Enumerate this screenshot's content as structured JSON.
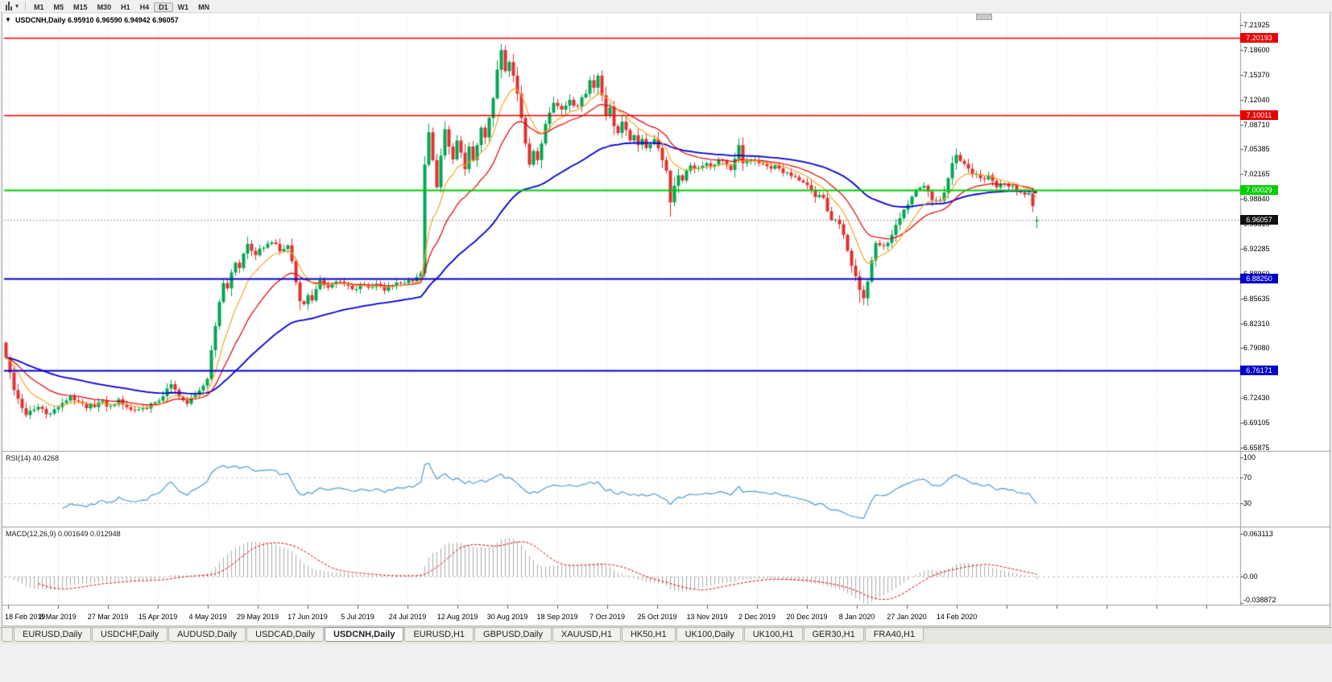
{
  "toolbar": {
    "timeframes": [
      "M1",
      "M5",
      "M15",
      "M30",
      "H1",
      "H4",
      "D1",
      "W1",
      "MN"
    ],
    "active": "D1"
  },
  "chart": {
    "symbol": "USDCNH",
    "period": "Daily",
    "title_overlay": "USDCNH,Daily 6.95910 6.96590 6.94942 6.96057",
    "ohlc": {
      "open": "6.95910",
      "high": "6.96590",
      "low": "6.94942",
      "close": "6.96057"
    }
  },
  "price_axis": {
    "ticks": [
      "7.21925",
      "7.18600",
      "7.15370",
      "7.12040",
      "7.08710",
      "7.05385",
      "7.02165",
      "6.98840",
      "6.95515",
      "6.92285",
      "6.88960",
      "6.85635",
      "6.82310",
      "6.79080",
      "6.75755",
      "6.72430",
      "6.69105",
      "6.65875"
    ]
  },
  "price_lines": [
    {
      "label": "7.20193",
      "value": 7.20193,
      "color": "#E60000"
    },
    {
      "label": "7.10011",
      "value": 7.10011,
      "color": "#E60000"
    },
    {
      "label": "7.00029",
      "value": 7.00029,
      "color": "#00CC00"
    },
    {
      "label": "6.88250",
      "value": 6.8825,
      "color": "#0000C8"
    },
    {
      "label": "6.76171",
      "value": 6.76171,
      "color": "#0000C8"
    }
  ],
  "current_price": {
    "label": "6.96057",
    "value": 6.96057,
    "box_color": "#111111"
  },
  "rsi": {
    "label": "RSI(14) 40.4268",
    "value": "40.4268",
    "ticks": [
      "100",
      "70",
      "30"
    ],
    "tick_values": [
      100,
      70,
      30
    ],
    "level_lines": [
      70,
      30
    ]
  },
  "macd": {
    "label": "MACD(12,26,9) 0.001649 0.012948",
    "values": "0.001649 0.012948",
    "ticks": [
      "0.063113",
      "0.00",
      "-0.038872"
    ],
    "tick_values": [
      0.063113,
      0,
      -0.038872
    ]
  },
  "time_axis": {
    "labels": [
      "18 Feb 2019",
      "8 Mar 2019",
      "27 Mar 2019",
      "15 Apr 2019",
      "4 May 2019",
      "29 May 2019",
      "17 Jun 2019",
      "5 Jul 2019",
      "24 Jul 2019",
      "12 Aug 2019",
      "30 Aug 2019",
      "18 Sep 2019",
      "7 Oct 2019",
      "25 Oct 2019",
      "13 Nov 2019",
      "2 Dec 2019",
      "20 Dec 2019",
      "8 Jan 2020",
      "27 Jan 2020",
      "14 Feb 2020"
    ]
  },
  "tabs": [
    {
      "label": "EURUSD,Daily"
    },
    {
      "label": "USDCHF,Daily"
    },
    {
      "label": "AUDUSD,Daily"
    },
    {
      "label": "USDCAD,Daily"
    },
    {
      "label": "USDCNH,Daily",
      "active": true
    },
    {
      "label": "EURUSD,H1"
    },
    {
      "label": "GBPUSD,Daily"
    },
    {
      "label": "XAUUSD,H1"
    },
    {
      "label": "HK50,H1"
    },
    {
      "label": "UK100,Daily"
    },
    {
      "label": "UK100,H1"
    },
    {
      "label": "GER30,H1"
    },
    {
      "label": "FRA40,H1"
    }
  ],
  "colors": {
    "bull": "#00A651",
    "bear": "#E33030",
    "ma_fast": "#F5A623",
    "ma_mid": "#E00000",
    "ma_slow": "#0000D2",
    "rsi_line": "#4A9CD4",
    "macd_hist": "#ABABAB",
    "macd_signal": "#E00000",
    "grid": "#E3E3E3",
    "level_dash": "#C8C8C8",
    "current_line": "#9C9C9C",
    "panel_border": "#9C9C9C",
    "window_bg": "#FFFFFF",
    "app_bg": "#F0F0F0"
  },
  "chart_data": {
    "type": "candlestick",
    "symbol": "USDCNH",
    "timeframe": "Daily",
    "bar_count": 257,
    "first_open": 6.798,
    "last_bar": {
      "open": 6.9591,
      "high": 6.9659,
      "low": 6.94942,
      "close": 6.96057
    },
    "y_range": [
      6.654,
      7.234
    ],
    "moving_averages": [
      {
        "name": "ma-slow",
        "period": 55,
        "color": "#0000D2",
        "width": 1.8
      },
      {
        "name": "ma-mid",
        "period": 20,
        "color": "#E00000",
        "width": 1.2
      },
      {
        "name": "ma-fast",
        "period": 9,
        "color": "#F5A623",
        "width": 1.2
      }
    ],
    "long_lower_wick_bars": [
      165,
      212,
      213
    ],
    "long_upper_wick_bars": [
      123
    ],
    "close_anchors": [
      [
        0,
        6.778
      ],
      [
        2,
        6.735
      ],
      [
        5,
        6.702
      ],
      [
        8,
        6.713
      ],
      [
        11,
        6.704
      ],
      [
        14,
        6.718
      ],
      [
        16,
        6.727
      ],
      [
        18,
        6.72
      ],
      [
        20,
        6.711
      ],
      [
        23,
        6.719
      ],
      [
        26,
        6.714
      ],
      [
        28,
        6.723
      ],
      [
        31,
        6.709
      ],
      [
        34,
        6.711
      ],
      [
        37,
        6.719
      ],
      [
        39,
        6.727
      ],
      [
        41,
        6.743
      ],
      [
        43,
        6.726
      ],
      [
        45,
        6.717
      ],
      [
        47,
        6.729
      ],
      [
        49,
        6.741
      ],
      [
        50,
        6.75
      ],
      [
        51,
        6.788
      ],
      [
        52,
        6.82
      ],
      [
        53,
        6.852
      ],
      [
        54,
        6.877
      ],
      [
        55,
        6.87
      ],
      [
        56,
        6.891
      ],
      [
        57,
        6.904
      ],
      [
        58,
        6.897
      ],
      [
        59,
        6.916
      ],
      [
        60,
        6.929
      ],
      [
        62,
        6.914
      ],
      [
        64,
        6.924
      ],
      [
        66,
        6.931
      ],
      [
        68,
        6.919
      ],
      [
        70,
        6.927
      ],
      [
        71,
        6.906
      ],
      [
        72,
        6.878
      ],
      [
        73,
        6.853
      ],
      [
        74,
        6.849
      ],
      [
        75,
        6.861
      ],
      [
        76,
        6.854
      ],
      [
        77,
        6.869
      ],
      [
        78,
        6.881
      ],
      [
        80,
        6.871
      ],
      [
        82,
        6.879
      ],
      [
        84,
        6.876
      ],
      [
        86,
        6.869
      ],
      [
        88,
        6.875
      ],
      [
        90,
        6.871
      ],
      [
        92,
        6.876
      ],
      [
        94,
        6.867
      ],
      [
        96,
        6.873
      ],
      [
        98,
        6.877
      ],
      [
        100,
        6.881
      ],
      [
        102,
        6.885
      ],
      [
        103,
        6.89
      ],
      [
        104,
        7.034
      ],
      [
        105,
        7.077
      ],
      [
        106,
        7.04
      ],
      [
        107,
        7.004
      ],
      [
        108,
        7.046
      ],
      [
        109,
        7.081
      ],
      [
        110,
        7.058
      ],
      [
        111,
        7.041
      ],
      [
        112,
        7.066
      ],
      [
        113,
        7.05
      ],
      [
        114,
        7.028
      ],
      [
        115,
        7.058
      ],
      [
        116,
        7.04
      ],
      [
        117,
        7.06
      ],
      [
        118,
        7.083
      ],
      [
        119,
        7.07
      ],
      [
        120,
        7.096
      ],
      [
        121,
        7.122
      ],
      [
        122,
        7.16
      ],
      [
        123,
        7.186
      ],
      [
        124,
        7.158
      ],
      [
        125,
        7.17
      ],
      [
        126,
        7.152
      ],
      [
        127,
        7.128
      ],
      [
        128,
        7.096
      ],
      [
        129,
        7.062
      ],
      [
        130,
        7.034
      ],
      [
        131,
        7.052
      ],
      [
        132,
        7.04
      ],
      [
        133,
        7.062
      ],
      [
        134,
        7.088
      ],
      [
        135,
        7.103
      ],
      [
        136,
        7.116
      ],
      [
        138,
        7.107
      ],
      [
        140,
        7.12
      ],
      [
        142,
        7.111
      ],
      [
        144,
        7.128
      ],
      [
        145,
        7.146
      ],
      [
        146,
        7.136
      ],
      [
        147,
        7.152
      ],
      [
        148,
        7.126
      ],
      [
        149,
        7.099
      ],
      [
        150,
        7.11
      ],
      [
        151,
        7.085
      ],
      [
        152,
        7.076
      ],
      [
        153,
        7.091
      ],
      [
        154,
        7.08
      ],
      [
        155,
        7.066
      ],
      [
        156,
        7.073
      ],
      [
        157,
        7.06
      ],
      [
        158,
        7.068
      ],
      [
        159,
        7.056
      ],
      [
        160,
        7.061
      ],
      [
        161,
        7.068
      ],
      [
        162,
        7.056
      ],
      [
        163,
        7.04
      ],
      [
        164,
        7.026
      ],
      [
        165,
        6.984
      ],
      [
        166,
        7.006
      ],
      [
        167,
        7.02
      ],
      [
        168,
        7.013
      ],
      [
        169,
        7.026
      ],
      [
        170,
        7.033
      ],
      [
        172,
        7.03
      ],
      [
        174,
        7.036
      ],
      [
        176,
        7.034
      ],
      [
        178,
        7.04
      ],
      [
        180,
        7.027
      ],
      [
        182,
        7.06
      ],
      [
        183,
        7.036
      ],
      [
        185,
        7.039
      ],
      [
        187,
        7.036
      ],
      [
        189,
        7.032
      ],
      [
        191,
        7.033
      ],
      [
        193,
        7.023
      ],
      [
        195,
        7.019
      ],
      [
        197,
        7.013
      ],
      [
        199,
        7.007
      ],
      [
        201,
        6.991
      ],
      [
        203,
        6.99
      ],
      [
        205,
        6.961
      ],
      [
        207,
        6.955
      ],
      [
        209,
        6.92
      ],
      [
        211,
        6.886
      ],
      [
        213,
        6.857
      ],
      [
        214,
        6.879
      ],
      [
        215,
        6.907
      ],
      [
        216,
        6.93
      ],
      [
        218,
        6.926
      ],
      [
        220,
        6.941
      ],
      [
        222,
        6.963
      ],
      [
        224,
        6.981
      ],
      [
        226,
        7.001
      ],
      [
        228,
        7.006
      ],
      [
        230,
        6.987
      ],
      [
        232,
        6.986
      ],
      [
        233,
        6.997
      ],
      [
        234,
        7.016
      ],
      [
        235,
        7.036
      ],
      [
        236,
        7.047
      ],
      [
        238,
        7.035
      ],
      [
        240,
        7.021
      ],
      [
        242,
        7.016
      ],
      [
        244,
        7.02
      ],
      [
        246,
        7.004
      ],
      [
        248,
        7.009
      ],
      [
        250,
        7.006
      ],
      [
        252,
        6.997
      ],
      [
        254,
        6.996
      ],
      [
        255,
        6.979
      ],
      [
        256,
        6.961
      ]
    ]
  }
}
